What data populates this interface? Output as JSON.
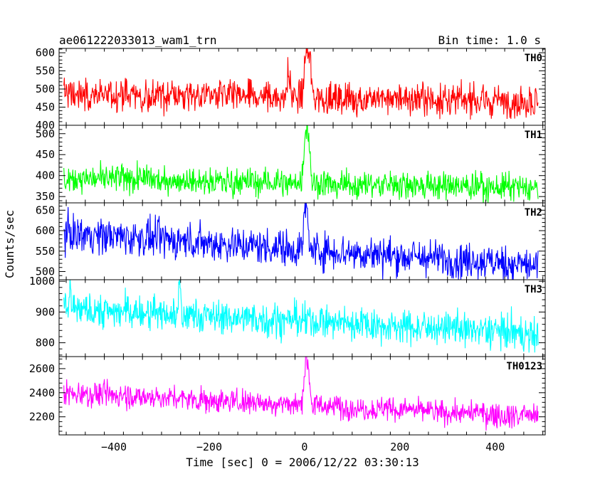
{
  "header": {
    "left": "ae061222033013_wam1_trn",
    "right": "Bin time: 1.0 s"
  },
  "chart_data": {
    "type": "line",
    "xlabel": "Time [sec] 0 = 2006/12/22 03:30:13",
    "ylabel": "Counts/sec",
    "xlim": [
      -515,
      505
    ],
    "xticks": [
      -400,
      -200,
      0,
      200,
      400
    ],
    "xtick_labels": [
      "−400",
      "−200",
      "0",
      "200",
      "400"
    ],
    "panels": [
      {
        "name": "TH0",
        "color": "#ff0000",
        "ylim": [
          400,
          612
        ],
        "yticks": [
          400,
          450,
          500,
          550,
          600
        ],
        "baseline": {
          "start": 487,
          "end": 465,
          "noise": 22
        },
        "features": [
          {
            "t": -33,
            "peak": 555,
            "width": 3
          },
          {
            "t": 4,
            "peak": 612,
            "width": 4
          },
          {
            "t": 12,
            "peak": 565,
            "width": 3
          }
        ]
      },
      {
        "name": "TH1",
        "color": "#00ff00",
        "ylim": [
          335,
          520
        ],
        "yticks": [
          350,
          400,
          450,
          500
        ],
        "baseline": {
          "start": 395,
          "end": 370,
          "noise": 16
        },
        "features": [
          {
            "t": 3,
            "peak": 520,
            "width": 4
          },
          {
            "t": 10,
            "peak": 455,
            "width": 3
          }
        ]
      },
      {
        "name": "TH2",
        "color": "#0000ff",
        "ylim": [
          480,
          668
        ],
        "yticks": [
          500,
          550,
          600,
          650
        ],
        "baseline": {
          "start": 595,
          "end": 515,
          "noise": 22
        },
        "features": [
          {
            "t": 3,
            "peak": 668,
            "width": 4
          }
        ]
      },
      {
        "name": "TH3",
        "color": "#00ffff",
        "ylim": [
          755,
          1005
        ],
        "yticks": [
          800,
          900,
          1000
        ],
        "baseline": {
          "start": 910,
          "end": 830,
          "noise": 28
        },
        "features": [
          {
            "t": -262,
            "peak": 1000,
            "width": 2
          },
          {
            "t": -492,
            "peak": 990,
            "width": 2
          }
        ]
      },
      {
        "name": "TH0123",
        "color": "#ff00ff",
        "ylim": [
          2050,
          2700
        ],
        "yticks": [
          2200,
          2400,
          2600
        ],
        "baseline": {
          "start": 2400,
          "end": 2200,
          "noise": 50
        },
        "features": [
          {
            "t": 3,
            "peak": 2700,
            "width": 4
          },
          {
            "t": 10,
            "peak": 2480,
            "width": 3
          }
        ]
      }
    ]
  }
}
